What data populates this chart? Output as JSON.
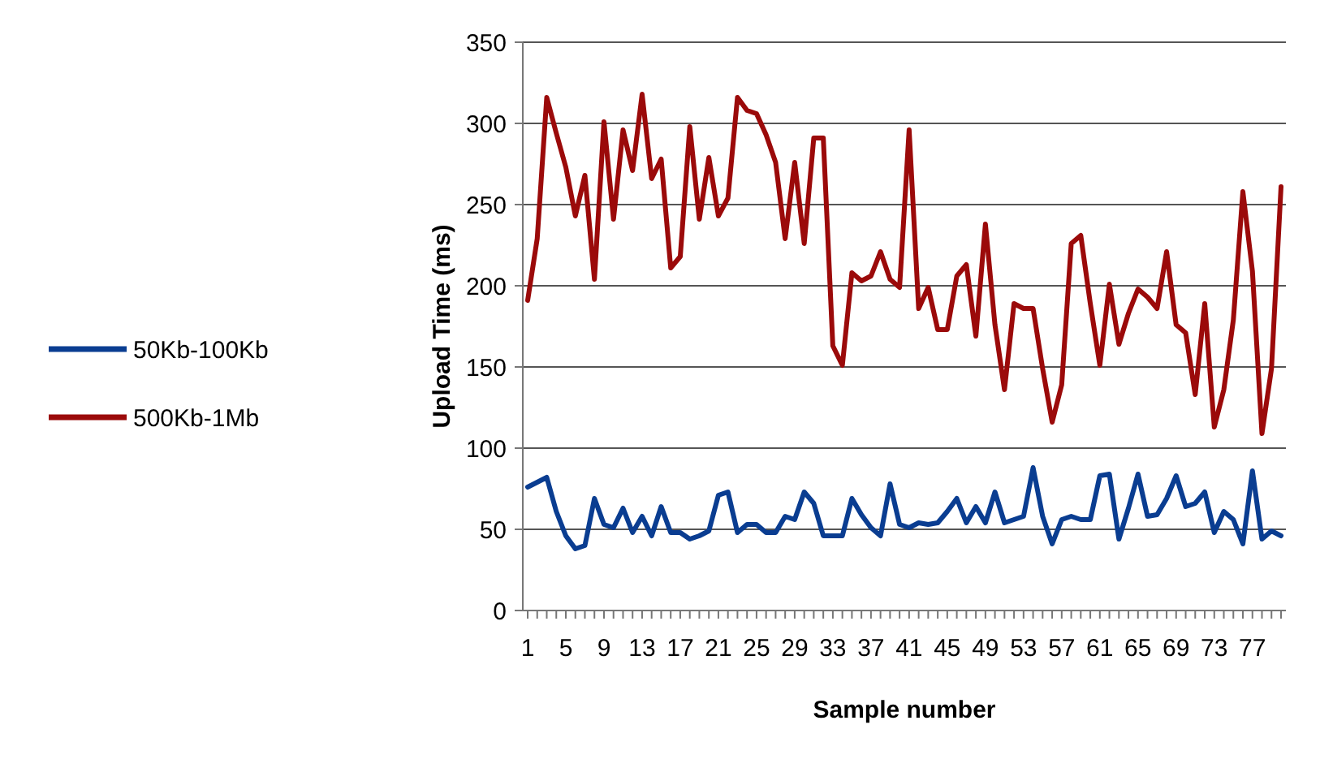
{
  "chart_data": {
    "type": "line",
    "xlabel": "Sample number",
    "ylabel": "Upload Time (ms)",
    "categories": [
      "1",
      null,
      null,
      null,
      "5",
      null,
      null,
      null,
      "9",
      null,
      null,
      null,
      "13",
      null,
      null,
      null,
      "17",
      null,
      null,
      null,
      "21",
      null,
      null,
      null,
      "25",
      null,
      null,
      null,
      "29",
      null,
      null,
      null,
      "33",
      null,
      null,
      null,
      "37",
      null,
      null,
      null,
      "41",
      null,
      null,
      null,
      "45",
      null,
      null,
      null,
      "49",
      null,
      null,
      null,
      "53",
      null,
      null,
      null,
      "57",
      null,
      null,
      null,
      "61",
      null,
      null,
      null,
      "65",
      null,
      null,
      null,
      "69",
      null,
      null,
      null,
      "73",
      null,
      null,
      null,
      "77",
      null,
      null,
      null
    ],
    "series": [
      {
        "name": "50Kb-100Kb",
        "color": "#0a3d91",
        "values": [
          76,
          79,
          82,
          61,
          46,
          38,
          40,
          69,
          53,
          51,
          63,
          48,
          58,
          46,
          64,
          48,
          48,
          44,
          46,
          49,
          71,
          73,
          48,
          53,
          53,
          48,
          48,
          58,
          56,
          73,
          66,
          46,
          46,
          46,
          69,
          59,
          51,
          46,
          78,
          53,
          51,
          54,
          53,
          54,
          61,
          69,
          54,
          64,
          54,
          73,
          54,
          56,
          58,
          88,
          58,
          41,
          56,
          58,
          56,
          56,
          83,
          84,
          44,
          63,
          84,
          58,
          59,
          69,
          83,
          64,
          66,
          73,
          48,
          61,
          56,
          41,
          86,
          44,
          49,
          46
        ]
      },
      {
        "name": "500Kb-1Mb",
        "color": "#9b0a0a",
        "values": [
          191,
          229,
          316,
          294,
          273,
          243,
          268,
          204,
          301,
          241,
          296,
          271,
          318,
          266,
          278,
          211,
          218,
          298,
          241,
          279,
          243,
          254,
          316,
          308,
          306,
          293,
          276,
          229,
          276,
          226,
          291,
          291,
          163,
          151,
          208,
          203,
          206,
          221,
          204,
          199,
          296,
          186,
          199,
          173,
          173,
          206,
          213,
          169,
          238,
          176,
          136,
          189,
          186,
          186,
          149,
          116,
          139,
          226,
          231,
          189,
          151,
          201,
          164,
          183,
          198,
          193,
          186,
          221,
          176,
          171,
          133,
          189,
          113,
          136,
          179,
          258,
          209,
          109,
          149,
          261
        ]
      }
    ],
    "ylim": [
      0,
      350
    ],
    "yticks": [
      0,
      50,
      100,
      150,
      200,
      250,
      300,
      350
    ],
    "grid": "y",
    "legend": "left",
    "marker": "none",
    "line_style": "solid"
  }
}
